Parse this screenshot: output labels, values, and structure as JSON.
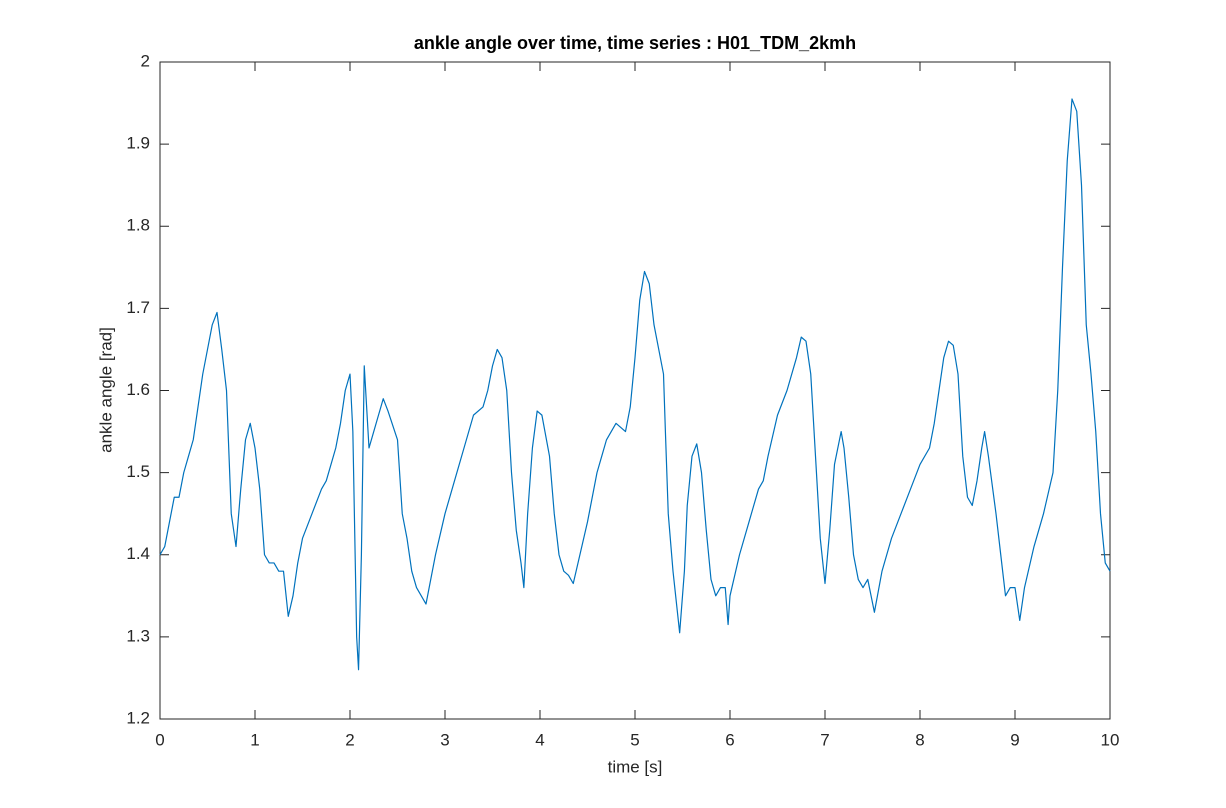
{
  "chart_data": {
    "type": "line",
    "title": "ankle angle over time, time series : H01_TDM_2kmh",
    "x_label": "time [s]",
    "y_label": "ankle angle [rad]",
    "xlim": [
      0,
      10
    ],
    "xticks": [
      0,
      1,
      2,
      3,
      4,
      5,
      6,
      7,
      8,
      9,
      10
    ],
    "ylim": [
      1.2,
      2
    ],
    "yticks": [
      1.2,
      1.3,
      1.4,
      1.5,
      1.6,
      1.7,
      1.8,
      1.9,
      2
    ],
    "grid": false,
    "series": [
      {
        "color": "#0072bd",
        "x": [
          0,
          0.05,
          0.1,
          0.15,
          0.2,
          0.25,
          0.3,
          0.35,
          0.4,
          0.45,
          0.5,
          0.55,
          0.6,
          0.65,
          0.7,
          0.75,
          0.8,
          0.85,
          0.9,
          0.95,
          1.0,
          1.05,
          1.1,
          1.15,
          1.2,
          1.25,
          1.3,
          1.35,
          1.4,
          1.45,
          1.5,
          1.6,
          1.7,
          1.75,
          1.8,
          1.85,
          1.9,
          1.95,
          2.0,
          2.03,
          2.07,
          2.09,
          2.12,
          2.15,
          2.2,
          2.25,
          2.3,
          2.35,
          2.4,
          2.5,
          2.55,
          2.6,
          2.65,
          2.7,
          2.8,
          2.85,
          2.9,
          3.0,
          3.1,
          3.2,
          3.3,
          3.4,
          3.45,
          3.5,
          3.55,
          3.6,
          3.65,
          3.7,
          3.75,
          3.8,
          3.83,
          3.87,
          3.92,
          3.97,
          4.02,
          4.1,
          4.15,
          4.2,
          4.25,
          4.3,
          4.35,
          4.4,
          4.5,
          4.6,
          4.65,
          4.7,
          4.8,
          4.85,
          4.9,
          4.95,
          5.0,
          5.05,
          5.1,
          5.15,
          5.2,
          5.3,
          5.32,
          5.35,
          5.4,
          5.47,
          5.52,
          5.55,
          5.6,
          5.65,
          5.7,
          5.75,
          5.8,
          5.85,
          5.9,
          5.95,
          5.98,
          6.0,
          6.1,
          6.2,
          6.3,
          6.35,
          6.4,
          6.5,
          6.6,
          6.7,
          6.75,
          6.8,
          6.85,
          6.9,
          6.95,
          7.0,
          7.05,
          7.1,
          7.17,
          7.2,
          7.25,
          7.3,
          7.35,
          7.4,
          7.45,
          7.52,
          7.6,
          7.7,
          7.8,
          7.9,
          8.0,
          8.1,
          8.15,
          8.2,
          8.25,
          8.3,
          8.35,
          8.4,
          8.45,
          8.5,
          8.55,
          8.6,
          8.65,
          8.68,
          8.72,
          8.8,
          8.85,
          8.9,
          8.95,
          9.0,
          9.05,
          9.1,
          9.2,
          9.3,
          9.4,
          9.45,
          9.5,
          9.55,
          9.6,
          9.65,
          9.7,
          9.75,
          9.8,
          9.85,
          9.9,
          9.95,
          10.0
        ],
        "values": [
          1.4,
          1.41,
          1.44,
          1.47,
          1.47,
          1.5,
          1.52,
          1.54,
          1.58,
          1.62,
          1.65,
          1.68,
          1.695,
          1.65,
          1.6,
          1.45,
          1.41,
          1.48,
          1.54,
          1.56,
          1.53,
          1.48,
          1.4,
          1.39,
          1.39,
          1.38,
          1.38,
          1.325,
          1.35,
          1.39,
          1.42,
          1.45,
          1.48,
          1.49,
          1.51,
          1.53,
          1.56,
          1.6,
          1.62,
          1.55,
          1.3,
          1.26,
          1.4,
          1.63,
          1.53,
          1.55,
          1.57,
          1.59,
          1.575,
          1.54,
          1.45,
          1.42,
          1.38,
          1.36,
          1.34,
          1.37,
          1.4,
          1.45,
          1.49,
          1.53,
          1.57,
          1.58,
          1.6,
          1.63,
          1.65,
          1.64,
          1.6,
          1.5,
          1.43,
          1.39,
          1.36,
          1.45,
          1.53,
          1.575,
          1.57,
          1.52,
          1.45,
          1.4,
          1.38,
          1.375,
          1.365,
          1.39,
          1.44,
          1.5,
          1.52,
          1.54,
          1.56,
          1.555,
          1.55,
          1.58,
          1.64,
          1.71,
          1.745,
          1.73,
          1.68,
          1.62,
          1.55,
          1.45,
          1.38,
          1.305,
          1.38,
          1.46,
          1.52,
          1.535,
          1.5,
          1.43,
          1.37,
          1.35,
          1.36,
          1.36,
          1.315,
          1.35,
          1.4,
          1.44,
          1.48,
          1.49,
          1.52,
          1.57,
          1.6,
          1.64,
          1.665,
          1.66,
          1.62,
          1.52,
          1.42,
          1.365,
          1.43,
          1.51,
          1.55,
          1.53,
          1.47,
          1.4,
          1.37,
          1.36,
          1.37,
          1.33,
          1.38,
          1.42,
          1.45,
          1.48,
          1.51,
          1.53,
          1.56,
          1.6,
          1.64,
          1.66,
          1.655,
          1.62,
          1.52,
          1.47,
          1.46,
          1.49,
          1.53,
          1.55,
          1.52,
          1.45,
          1.4,
          1.35,
          1.36,
          1.36,
          1.32,
          1.36,
          1.41,
          1.45,
          1.5,
          1.6,
          1.75,
          1.88,
          1.955,
          1.94,
          1.85,
          1.68,
          1.62,
          1.55,
          1.45,
          1.39,
          1.38
        ]
      }
    ]
  }
}
